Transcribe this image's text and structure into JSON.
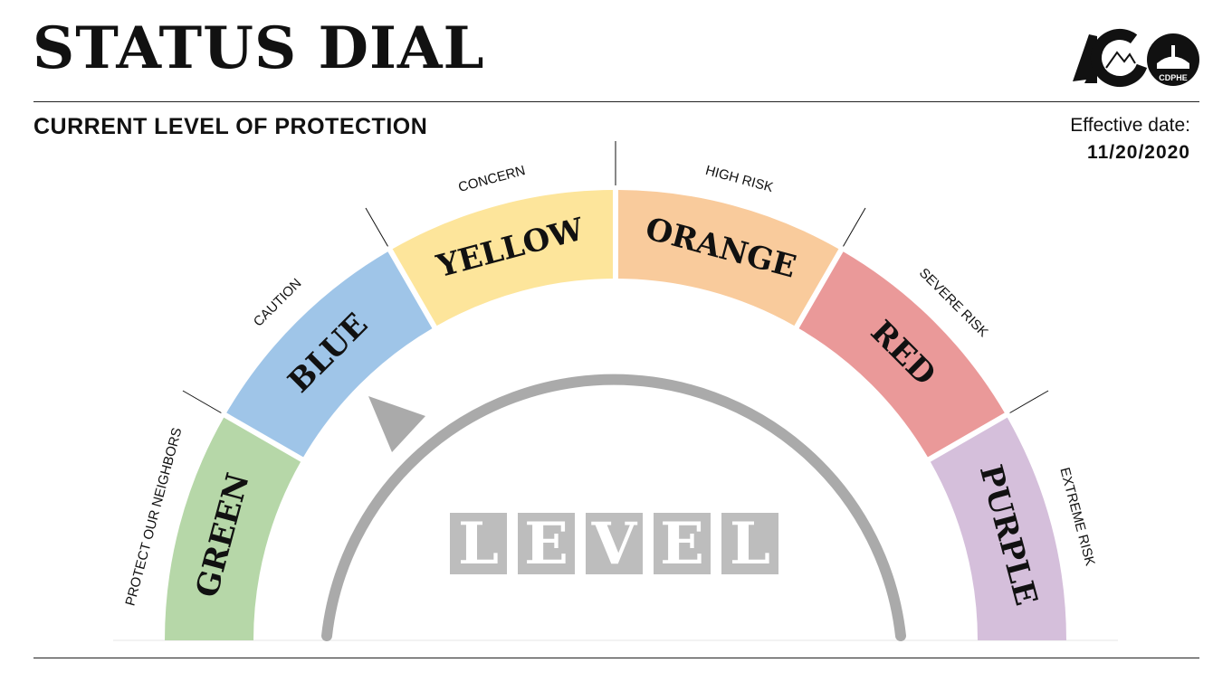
{
  "header": {
    "title": "STATUS DIAL",
    "subtitle": "CURRENT LEVEL OF PROTECTION",
    "effective_label": "Effective date:",
    "effective_date": "11/20/2020",
    "logo_text": "CDPHE"
  },
  "dial": {
    "center_word": [
      "L",
      "E",
      "V",
      "E",
      "L"
    ],
    "levels": [
      {
        "name": "GREEN",
        "sublabel": "PROTECT OUR NEIGHBORS",
        "color": "#b6d7a8"
      },
      {
        "name": "BLUE",
        "sublabel": "CAUTION",
        "color": "#9fc5e8"
      },
      {
        "name": "YELLOW",
        "sublabel": "CONCERN",
        "color": "#fde59b"
      },
      {
        "name": "ORANGE",
        "sublabel": "HIGH RISK",
        "color": "#f9cb9c"
      },
      {
        "name": "RED",
        "sublabel": "SEVERE RISK",
        "color": "#ea9999"
      },
      {
        "name": "PURPLE",
        "sublabel": "EXTREME RISK",
        "color": "#d5bfdb"
      }
    ],
    "arrow_color": "#aaaaaa",
    "box_color": "#bdbdbd"
  }
}
